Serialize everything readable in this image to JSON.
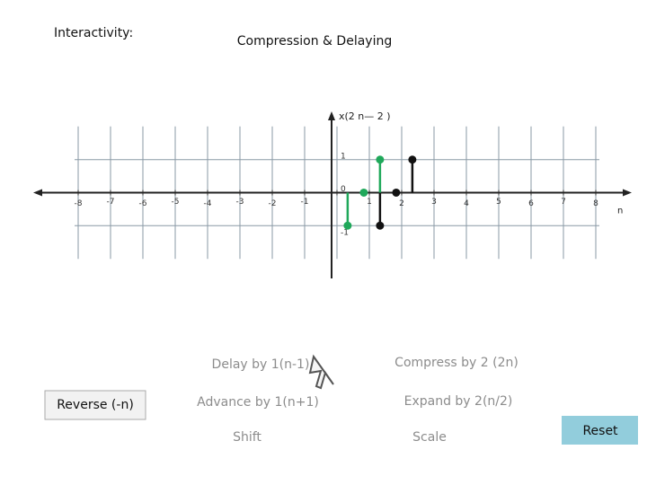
{
  "header": {
    "left": "Interactivity:",
    "title": "Compression & Delaying"
  },
  "chart_data": {
    "type": "stem",
    "axis_label": "x(2 n— 2 )",
    "x_label": "n",
    "xlim": [
      -9,
      9
    ],
    "ylim": [
      -2.6,
      2.3
    ],
    "xticks": [
      -8,
      -7,
      -6,
      -5,
      -4,
      -3,
      -2,
      -1,
      0,
      1,
      2,
      3,
      4,
      5,
      6,
      7,
      8
    ],
    "yticks": [
      -1,
      0,
      1
    ],
    "grid": true,
    "series": [
      {
        "color": "#1fa85a",
        "x": [
          0.33,
          0.83,
          1.33
        ],
        "values": [
          -1,
          0,
          1
        ]
      },
      {
        "color": "#111111",
        "x": [
          1.33,
          1.83,
          2.33
        ],
        "values": [
          -1,
          0,
          1
        ]
      }
    ]
  },
  "controls": {
    "buttons": [
      "Delay by 1(n-1)",
      "Compress by 2 (2n)",
      "Reverse (-n)",
      "Advance by 1(n+1)",
      "Expand by 2(n/2)",
      "Shift",
      "Scale",
      "Reset"
    ]
  }
}
